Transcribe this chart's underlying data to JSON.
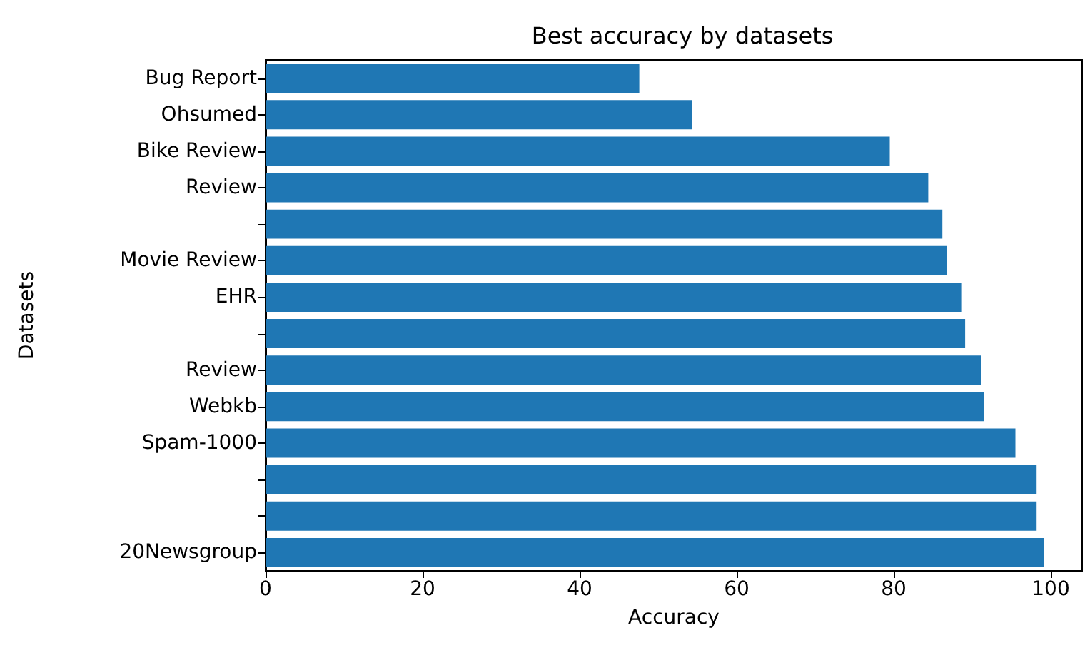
{
  "chart_data": {
    "type": "bar",
    "orientation": "horizontal",
    "title": "Best accuracy by datasets",
    "xlabel": "Accuracy",
    "ylabel": "Datasets",
    "categories": [
      "Bug Report",
      "Ohsumed",
      "Bike Review",
      "Review",
      null,
      "Movie Review",
      "EHR",
      null,
      "Review",
      "Webkb",
      "Spam-1000",
      null,
      null,
      "20Newsgroup"
    ],
    "values": [
      47.6,
      54.3,
      79.5,
      84.4,
      86.2,
      86.8,
      88.6,
      89.1,
      91.1,
      91.5,
      95.5,
      98.2,
      98.2,
      99.1
    ],
    "color": "#1f77b4",
    "xlim": [
      0,
      104
    ],
    "xticks": [
      0,
      20,
      40,
      60,
      80,
      100
    ]
  }
}
